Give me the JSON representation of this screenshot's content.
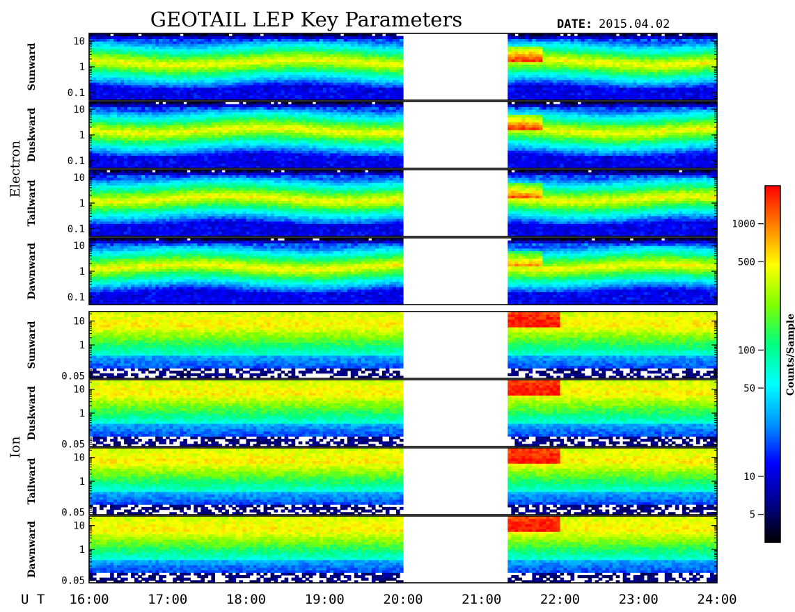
{
  "chart_data": {
    "type": "heatmap",
    "title": "GEOTAIL LEP Key Parameters",
    "date_label": "DATE:",
    "date_value": "2015.04.02",
    "x_axis": {
      "prefix": "U T",
      "tick_labels": [
        "16:00",
        "17:00",
        "18:00",
        "19:00",
        "20:00",
        "21:00",
        "22:00",
        "23:00",
        "24:00"
      ],
      "range_hours": [
        16,
        24
      ]
    },
    "data_gap_hours": [
      20.02,
      21.35
    ],
    "groups": [
      {
        "name": "Electron",
        "y_scale": "log",
        "y_range": [
          0.05,
          20
        ],
        "y_ticks": [
          "10",
          "1",
          "0.1"
        ],
        "panels": [
          "Sunward",
          "Duskward",
          "Tailward",
          "Dawnward"
        ]
      },
      {
        "name": "Ion",
        "y_scale": "log",
        "y_range": [
          0.04,
          25
        ],
        "y_ticks": [
          "10",
          "1",
          "0.05"
        ],
        "panels": [
          "Sunward",
          "Duskward",
          "Tailward",
          "Dawnward"
        ]
      }
    ],
    "colorbar": {
      "label": "Counts/Sample",
      "scale": "log",
      "range": [
        3,
        2000
      ],
      "tick_labels": [
        "1000",
        "500",
        "100",
        "50",
        "10",
        "5"
      ],
      "tick_values": [
        1000,
        500,
        100,
        50,
        10,
        5
      ],
      "colormap": [
        "#000000",
        "#00008b",
        "#0000ff",
        "#0096ff",
        "#00ffff",
        "#00ff80",
        "#80ff00",
        "#ffff00",
        "#ff8000",
        "#ff0000"
      ]
    },
    "grid": false
  }
}
